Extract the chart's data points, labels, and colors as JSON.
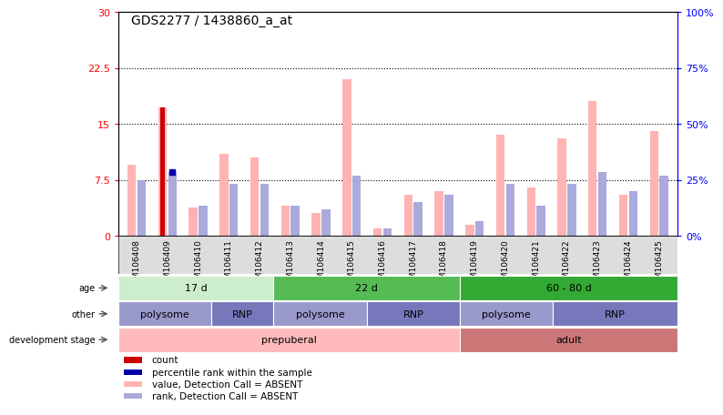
{
  "title": "GDS2277 / 1438860_a_at",
  "samples": [
    "GSM106408",
    "GSM106409",
    "GSM106410",
    "GSM106411",
    "GSM106412",
    "GSM106413",
    "GSM106414",
    "GSM106415",
    "GSM106416",
    "GSM106417",
    "GSM106418",
    "GSM106419",
    "GSM106420",
    "GSM106421",
    "GSM106422",
    "GSM106423",
    "GSM106424",
    "GSM106425"
  ],
  "pink_values": [
    9.5,
    17.2,
    3.8,
    11.0,
    10.5,
    4.0,
    3.0,
    21.0,
    1.0,
    5.5,
    6.0,
    1.5,
    13.5,
    6.5,
    13.0,
    18.0,
    5.5,
    14.0
  ],
  "blue_rank_values": [
    7.5,
    8.5,
    4.0,
    7.0,
    7.0,
    4.0,
    3.5,
    8.0,
    1.0,
    4.5,
    5.5,
    2.0,
    7.0,
    4.0,
    7.0,
    8.5,
    6.0,
    8.0
  ],
  "special_red_idx": 1,
  "special_blue_idx": 1,
  "red_value": 17.2,
  "blue_dot_value": 8.5,
  "left_yticks": [
    0,
    7.5,
    15,
    22.5,
    30
  ],
  "right_yticks": [
    0,
    25,
    50,
    75,
    100
  ],
  "left_ylabels": [
    "0",
    "7.5",
    "15",
    "22.5",
    "30"
  ],
  "right_ylabels": [
    "0%",
    "25%",
    "50%",
    "75%",
    "100%"
  ],
  "pink_color": "#FFB3B3",
  "blue_color": "#AAAADD",
  "red_color": "#CC0000",
  "dark_blue_color": "#0000AA",
  "age_groups": [
    {
      "label": "17 d",
      "start": 0,
      "end": 5,
      "color": "#CCEECC"
    },
    {
      "label": "22 d",
      "start": 5,
      "end": 11,
      "color": "#55BB55"
    },
    {
      "label": "60 - 80 d",
      "start": 11,
      "end": 18,
      "color": "#33AA33"
    }
  ],
  "other_groups": [
    {
      "label": "polysome",
      "start": 0,
      "end": 3,
      "color": "#9999CC"
    },
    {
      "label": "RNP",
      "start": 3,
      "end": 5,
      "color": "#7777BB"
    },
    {
      "label": "polysome",
      "start": 5,
      "end": 8,
      "color": "#9999CC"
    },
    {
      "label": "RNP",
      "start": 8,
      "end": 11,
      "color": "#7777BB"
    },
    {
      "label": "polysome",
      "start": 11,
      "end": 14,
      "color": "#9999CC"
    },
    {
      "label": "RNP",
      "start": 14,
      "end": 18,
      "color": "#7777BB"
    }
  ],
  "dev_groups": [
    {
      "label": "prepuberal",
      "start": 0,
      "end": 11,
      "color": "#FFBBBB"
    },
    {
      "label": "adult",
      "start": 11,
      "end": 18,
      "color": "#CC7777"
    }
  ],
  "legend_colors": [
    "#CC0000",
    "#0000AA",
    "#FFB3B3",
    "#AAAADD"
  ],
  "legend_labels": [
    "count",
    "percentile rank within the sample",
    "value, Detection Call = ABSENT",
    "rank, Detection Call = ABSENT"
  ]
}
